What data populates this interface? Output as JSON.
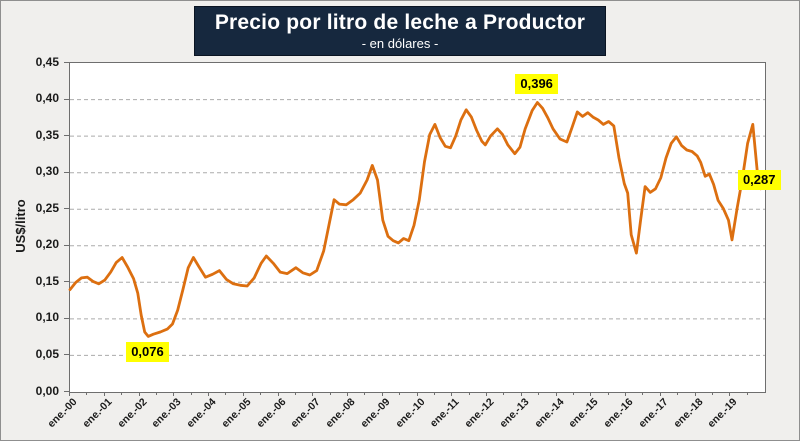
{
  "title": "Precio por litro de leche a Productor",
  "subtitle": "- en dólares -",
  "y_axis": {
    "title": "US$/litro",
    "ticks": [
      "0,45",
      "0,40",
      "0,35",
      "0,30",
      "0,25",
      "0,20",
      "0,15",
      "0,10",
      "0,05",
      "0,00"
    ]
  },
  "x_axis": {
    "ticks": [
      "ene.-00",
      "ene.-01",
      "ene.-02",
      "ene.-03",
      "ene.-04",
      "ene.-05",
      "ene.-06",
      "ene.-07",
      "ene.-08",
      "ene.-09",
      "ene.-10",
      "ene.-11",
      "ene.-12",
      "ene.-13",
      "ene.-14",
      "ene.-15",
      "ene.-16",
      "ene.-17",
      "ene.-18",
      "ene.-19"
    ]
  },
  "annotations": [
    {
      "id": "min",
      "text": "0,076"
    },
    {
      "id": "max",
      "text": "0,396"
    },
    {
      "id": "last",
      "text": "0,287"
    }
  ],
  "colors": {
    "title_bg": "#16283E",
    "title_text": "#FFFFFF",
    "line": "#DC6F10",
    "annotation_bg": "#FFFF00",
    "annotation_text": "#000000",
    "background": "#F0EFED",
    "plot_background": "#FFFFFF",
    "gridline": "#ABABAB",
    "axis_text": "#1A1A1A",
    "plot_border": "#6E6E6E"
  },
  "chart_data": {
    "type": "line",
    "title": "Precio por litro de leche a Productor",
    "subtitle": "- en dólares -",
    "xlabel": "",
    "ylabel": "US$/litro",
    "ylim": [
      0,
      0.45
    ],
    "xlim": [
      2000,
      2020
    ],
    "grid": "horizontal dashed gridlines every 0,05",
    "legend": "none",
    "x_unit": "decimal year (monthly series, ticks ene.-00 … ene.-19)",
    "highlights": {
      "min": 0.076,
      "max": 0.396,
      "last": 0.287
    },
    "series": [
      {
        "name": "Precio por litro de leche a productor (US$/litro)",
        "color": "#DC6F10",
        "points": [
          [
            2000.0,
            0.14
          ],
          [
            2000.17,
            0.15
          ],
          [
            2000.33,
            0.156
          ],
          [
            2000.5,
            0.157
          ],
          [
            2000.67,
            0.151
          ],
          [
            2000.83,
            0.148
          ],
          [
            2001.0,
            0.153
          ],
          [
            2001.17,
            0.164
          ],
          [
            2001.33,
            0.177
          ],
          [
            2001.5,
            0.184
          ],
          [
            2001.67,
            0.17
          ],
          [
            2001.83,
            0.155
          ],
          [
            2001.95,
            0.135
          ],
          [
            2002.05,
            0.105
          ],
          [
            2002.15,
            0.082
          ],
          [
            2002.25,
            0.076
          ],
          [
            2002.4,
            0.079
          ],
          [
            2002.6,
            0.082
          ],
          [
            2002.8,
            0.086
          ],
          [
            2002.95,
            0.093
          ],
          [
            2003.1,
            0.112
          ],
          [
            2003.25,
            0.14
          ],
          [
            2003.4,
            0.17
          ],
          [
            2003.55,
            0.184
          ],
          [
            2003.7,
            0.172
          ],
          [
            2003.9,
            0.157
          ],
          [
            2004.1,
            0.161
          ],
          [
            2004.3,
            0.166
          ],
          [
            2004.5,
            0.154
          ],
          [
            2004.7,
            0.148
          ],
          [
            2004.9,
            0.146
          ],
          [
            2005.1,
            0.145
          ],
          [
            2005.3,
            0.156
          ],
          [
            2005.5,
            0.176
          ],
          [
            2005.65,
            0.186
          ],
          [
            2005.85,
            0.176
          ],
          [
            2006.05,
            0.164
          ],
          [
            2006.25,
            0.162
          ],
          [
            2006.5,
            0.17
          ],
          [
            2006.7,
            0.163
          ],
          [
            2006.9,
            0.16
          ],
          [
            2007.1,
            0.166
          ],
          [
            2007.3,
            0.193
          ],
          [
            2007.45,
            0.228
          ],
          [
            2007.6,
            0.263
          ],
          [
            2007.75,
            0.257
          ],
          [
            2007.95,
            0.256
          ],
          [
            2008.15,
            0.263
          ],
          [
            2008.35,
            0.272
          ],
          [
            2008.55,
            0.29
          ],
          [
            2008.7,
            0.31
          ],
          [
            2008.85,
            0.29
          ],
          [
            2009.0,
            0.235
          ],
          [
            2009.15,
            0.213
          ],
          [
            2009.3,
            0.207
          ],
          [
            2009.45,
            0.204
          ],
          [
            2009.6,
            0.21
          ],
          [
            2009.75,
            0.207
          ],
          [
            2009.9,
            0.228
          ],
          [
            2010.05,
            0.262
          ],
          [
            2010.2,
            0.315
          ],
          [
            2010.35,
            0.352
          ],
          [
            2010.5,
            0.366
          ],
          [
            2010.65,
            0.348
          ],
          [
            2010.8,
            0.336
          ],
          [
            2010.95,
            0.334
          ],
          [
            2011.1,
            0.35
          ],
          [
            2011.25,
            0.372
          ],
          [
            2011.4,
            0.386
          ],
          [
            2011.55,
            0.376
          ],
          [
            2011.7,
            0.358
          ],
          [
            2011.85,
            0.343
          ],
          [
            2011.95,
            0.338
          ],
          [
            2012.1,
            0.35
          ],
          [
            2012.3,
            0.36
          ],
          [
            2012.45,
            0.352
          ],
          [
            2012.6,
            0.338
          ],
          [
            2012.8,
            0.326
          ],
          [
            2012.95,
            0.335
          ],
          [
            2013.1,
            0.36
          ],
          [
            2013.3,
            0.385
          ],
          [
            2013.45,
            0.396
          ],
          [
            2013.6,
            0.388
          ],
          [
            2013.75,
            0.375
          ],
          [
            2013.9,
            0.36
          ],
          [
            2014.1,
            0.346
          ],
          [
            2014.3,
            0.342
          ],
          [
            2014.45,
            0.362
          ],
          [
            2014.6,
            0.383
          ],
          [
            2014.75,
            0.377
          ],
          [
            2014.9,
            0.382
          ],
          [
            2015.05,
            0.376
          ],
          [
            2015.2,
            0.372
          ],
          [
            2015.35,
            0.366
          ],
          [
            2015.5,
            0.37
          ],
          [
            2015.65,
            0.364
          ],
          [
            2015.8,
            0.32
          ],
          [
            2015.95,
            0.285
          ],
          [
            2016.05,
            0.272
          ],
          [
            2016.15,
            0.215
          ],
          [
            2016.3,
            0.19
          ],
          [
            2016.42,
            0.235
          ],
          [
            2016.55,
            0.281
          ],
          [
            2016.7,
            0.273
          ],
          [
            2016.85,
            0.278
          ],
          [
            2017.0,
            0.293
          ],
          [
            2017.15,
            0.32
          ],
          [
            2017.3,
            0.34
          ],
          [
            2017.45,
            0.349
          ],
          [
            2017.6,
            0.337
          ],
          [
            2017.75,
            0.331
          ],
          [
            2017.9,
            0.329
          ],
          [
            2018.05,
            0.323
          ],
          [
            2018.15,
            0.314
          ],
          [
            2018.28,
            0.295
          ],
          [
            2018.4,
            0.298
          ],
          [
            2018.52,
            0.284
          ],
          [
            2018.65,
            0.262
          ],
          [
            2018.8,
            0.251
          ],
          [
            2018.95,
            0.235
          ],
          [
            2019.05,
            0.208
          ],
          [
            2019.2,
            0.252
          ],
          [
            2019.35,
            0.292
          ],
          [
            2019.5,
            0.34
          ],
          [
            2019.65,
            0.366
          ],
          [
            2019.78,
            0.3
          ],
          [
            2019.88,
            0.278
          ],
          [
            2019.97,
            0.287
          ]
        ]
      }
    ]
  }
}
